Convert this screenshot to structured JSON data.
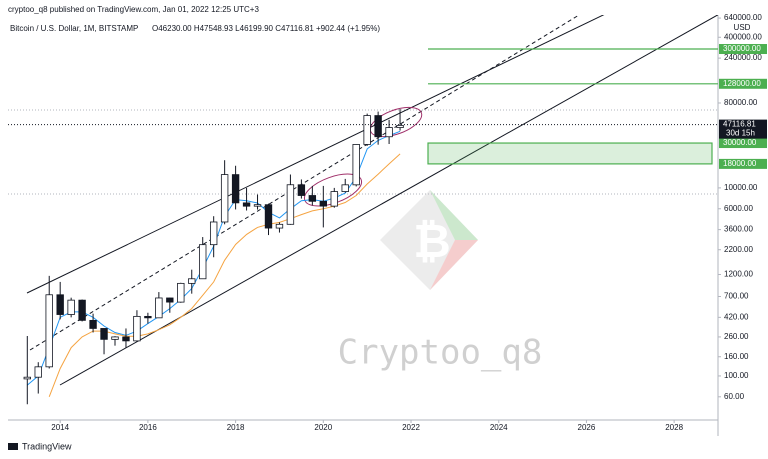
{
  "header": {
    "published": "cryptoo_q8 published on TradingView.com, Jan 01, 2022 12:25 UTC+3"
  },
  "chart_data": {
    "type": "candlestick",
    "title": "Bitcoin / U.S. Dollar, 1M, BITSTAMP",
    "ohlc_legend": "O46230.00 H47548.93 L46199.90 C47116.81 +902.44 (+1.95%)",
    "currency": "USD",
    "log_scale": true,
    "up_color": "#ffffff",
    "down_color": "#131722",
    "x": [
      2013.25,
      2013.5,
      2013.75,
      2014.0,
      2014.25,
      2014.5,
      2014.75,
      2015.0,
      2015.25,
      2015.5,
      2015.75,
      2016.0,
      2016.25,
      2016.5,
      2016.75,
      2017.0,
      2017.25,
      2017.5,
      2017.75,
      2018.0,
      2018.25,
      2018.5,
      2018.75,
      2019.0,
      2019.25,
      2019.5,
      2019.75,
      2020.0,
      2020.25,
      2020.5,
      2020.75,
      2021.0,
      2021.25,
      2021.5,
      2021.75
    ],
    "open": [
      93,
      97,
      125,
      730,
      450,
      640,
      390,
      320,
      245,
      260,
      236,
      430,
      415,
      675,
      610,
      965,
      1080,
      2490,
      4340,
      13850,
      6930,
      6390,
      6630,
      3740,
      4100,
      10800,
      8300,
      7200,
      6400,
      9140,
      10780,
      28990,
      58800,
      35000,
      43800
    ],
    "high": [
      266,
      140,
      1160,
      1000,
      680,
      650,
      460,
      320,
      265,
      320,
      500,
      470,
      780,
      680,
      980,
      1350,
      3000,
      5000,
      19700,
      17200,
      9990,
      8500,
      6800,
      4300,
      13880,
      12300,
      10500,
      10500,
      10000,
      12470,
      29300,
      61700,
      64800,
      52900,
      69000
    ],
    "low": [
      50,
      65,
      120,
      400,
      420,
      380,
      290,
      170,
      210,
      200,
      230,
      360,
      415,
      470,
      600,
      750,
      1080,
      1830,
      4100,
      5900,
      5750,
      5880,
      3150,
      3350,
      4060,
      7700,
      6500,
      3800,
      6150,
      8900,
      10370,
      28000,
      28800,
      29300,
      40700
    ],
    "close": [
      97,
      125,
      730,
      450,
      640,
      390,
      320,
      245,
      260,
      236,
      430,
      415,
      675,
      610,
      965,
      1080,
      2490,
      4340,
      13850,
      6930,
      6390,
      6630,
      3740,
      4100,
      10800,
      8300,
      7200,
      6400,
      9140,
      10780,
      28990,
      58800,
      35000,
      43800,
      46230
    ],
    "moving_averages": [
      {
        "color": "#2196f3",
        "values": [
          80,
          100,
          200,
          420,
          480,
          480,
          420,
          340,
          290,
          270,
          300,
          360,
          430,
          520,
          650,
          850,
          1400,
          2400,
          5000,
          7500,
          7300,
          6900,
          5500,
          4800,
          6000,
          7300,
          7500,
          7200,
          7800,
          8800,
          13000,
          26000,
          32000,
          36000,
          40000
        ]
      },
      {
        "color": "#f5a442",
        "values": [
          null,
          null,
          60,
          120,
          200,
          260,
          300,
          300,
          280,
          265,
          265,
          280,
          310,
          350,
          420,
          520,
          720,
          1000,
          1700,
          2500,
          3200,
          3800,
          4100,
          4300,
          4700,
          5200,
          5700,
          6000,
          6400,
          7000,
          8300,
          11000,
          14000,
          18000,
          23000
        ]
      }
    ],
    "xlim": [
      2012.81,
      2029.0
    ],
    "xticks": [
      2014,
      2016,
      2018,
      2020,
      2022,
      2024,
      2026,
      2028
    ],
    "ylim": [
      34,
      690000
    ],
    "yticks": [
      {
        "value": 60,
        "label": "60.00"
      },
      {
        "value": 100,
        "label": "100.00"
      },
      {
        "value": 160,
        "label": "160.00"
      },
      {
        "value": 260,
        "label": "260.00"
      },
      {
        "value": 420,
        "label": "420.00"
      },
      {
        "value": 700,
        "label": "700.00"
      },
      {
        "value": 1200,
        "label": "1200.00"
      },
      {
        "value": 2200,
        "label": "2200.00"
      },
      {
        "value": 3600,
        "label": "3600.00"
      },
      {
        "value": 6000,
        "label": "6000.00"
      },
      {
        "value": 10000,
        "label": "10000.00"
      },
      {
        "value": 80000,
        "label": "80000.00"
      },
      {
        "value": 240000,
        "label": "240000.00"
      },
      {
        "value": 400000,
        "label": "400000.00"
      },
      {
        "value": 640000,
        "label": "640000.00"
      }
    ],
    "level_color": "#4caf50",
    "levels": [
      {
        "value": 300000,
        "label": "300000.00"
      },
      {
        "value": 128000,
        "label": "128000.00"
      }
    ],
    "zone": {
      "top": {
        "value": 30000,
        "label": "30000.00"
      },
      "bottom": {
        "value": 18000,
        "label": "18000.00"
      }
    },
    "last_price": {
      "value": 47116.81,
      "label": "47116.81"
    },
    "countdown": "30d 15h",
    "watermark": "Cryptoo_q8",
    "footer": "TradingView"
  }
}
